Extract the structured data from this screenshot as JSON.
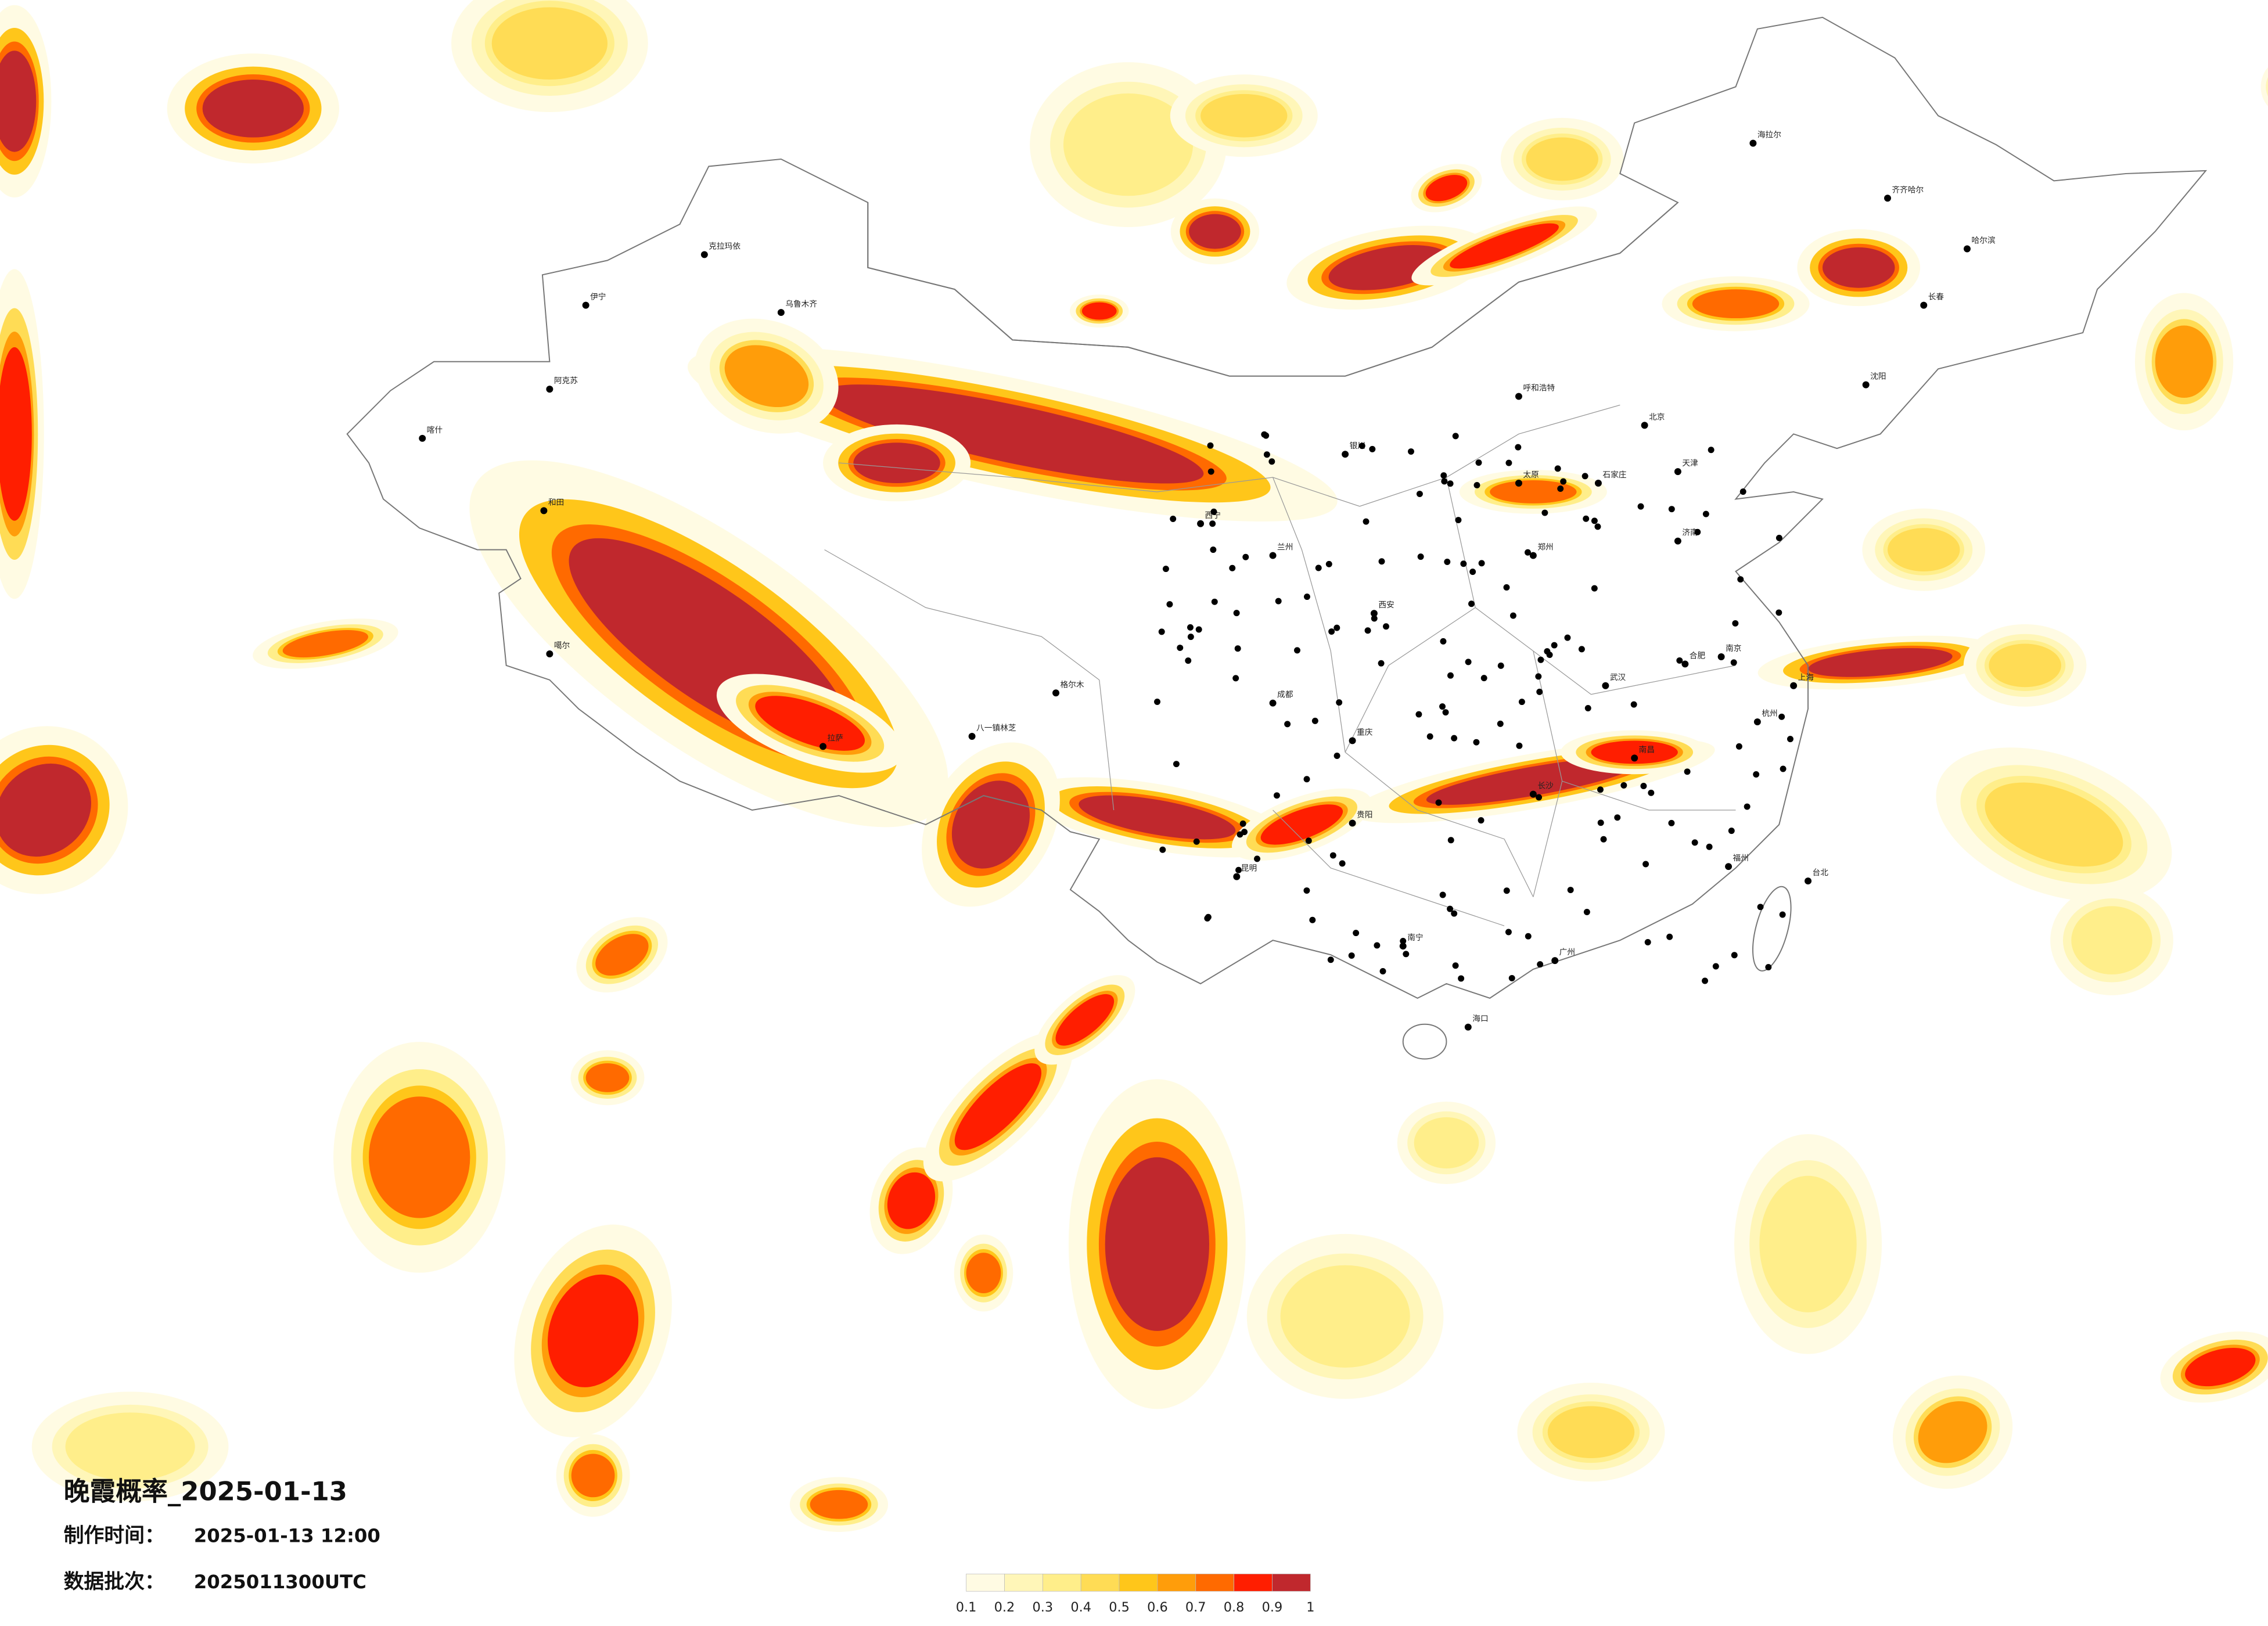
{
  "map": {
    "title": "晚霞概率_2025-01-13",
    "made_label": "制作时间：",
    "made_value": "2025-01-13 12:00",
    "batch_label": "数据批次：",
    "batch_value": "2025011300UTC",
    "legend": {
      "ticks": [
        0.1,
        0.2,
        0.3,
        0.4,
        0.5,
        0.6,
        0.7,
        0.8,
        0.9,
        1
      ],
      "colors": [
        "#fffbe3",
        "#fff6b8",
        "#ffee8a",
        "#ffdc55",
        "#ffc61a",
        "#ff9d0a",
        "#ff6a00",
        "#ff1e00",
        "#c0282d"
      ]
    },
    "cities": [
      "北京",
      "天津",
      "上海",
      "广州",
      "哈尔滨",
      "长春",
      "沈阳",
      "乌鲁木齐",
      "伊宁",
      "喀什",
      "和田",
      "拉萨",
      "八一镇林芝",
      "西宁",
      "兰州",
      "成都",
      "重庆",
      "昆明",
      "南宁",
      "海口",
      "贵阳",
      "长沙",
      "武汉",
      "郑州",
      "西安",
      "太原",
      "石家庄",
      "济南",
      "南京",
      "杭州",
      "福州",
      "台北",
      "合肥",
      "南昌",
      "呼和浩特",
      "银川",
      "海拉尔",
      "齐齐哈尔",
      "克拉玛依",
      "格尔木",
      "阿克苏",
      "噶尔"
    ]
  }
}
